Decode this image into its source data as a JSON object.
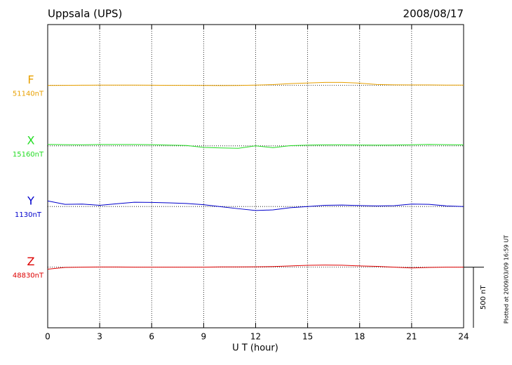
{
  "chart_data": {
    "type": "line",
    "title": "Uppsala (UPS)",
    "date": "2008/08/17",
    "x_label": "U T (hour)",
    "x": [
      0,
      1,
      2,
      3,
      4,
      5,
      6,
      7,
      8,
      9,
      10,
      11,
      12,
      13,
      14,
      15,
      16,
      17,
      18,
      19,
      20,
      21,
      22,
      23,
      24
    ],
    "xlim": [
      0,
      24
    ],
    "xticks": [
      0,
      3,
      6,
      9,
      12,
      15,
      18,
      21,
      24
    ],
    "grid": true,
    "scale_bar": {
      "value": 500,
      "label": "500 nT"
    },
    "footnote": "Plotted at 2009/03/09 16:59 UT",
    "series": [
      {
        "name": "F",
        "color": "#e8a000",
        "baseline": {
          "value": 51140,
          "label": "51140nT"
        },
        "values": [
          51138,
          51139,
          51140,
          51141,
          51141,
          51141,
          51140,
          51139,
          51139,
          51138,
          51137,
          51138,
          51141,
          51145,
          51153,
          51158,
          51163,
          51163,
          51157,
          51146,
          51143,
          51142,
          51142,
          51141,
          51141
        ]
      },
      {
        "name": "X",
        "color": "#22dd22",
        "baseline": {
          "value": 15160,
          "label": "15160nT"
        },
        "values": [
          15172,
          15170,
          15169,
          15171,
          15171,
          15171,
          15170,
          15166,
          15163,
          15147,
          15143,
          15140,
          15160,
          15145,
          15162,
          15166,
          15168,
          15169,
          15167,
          15166,
          15167,
          15169,
          15172,
          15170,
          15168
        ]
      },
      {
        "name": "Y",
        "color": "#0000cc",
        "baseline": {
          "value": 1130,
          "label": "1130nT"
        },
        "values": [
          1176,
          1148,
          1150,
          1140,
          1153,
          1165,
          1164,
          1160,
          1155,
          1145,
          1128,
          1112,
          1097,
          1102,
          1120,
          1130,
          1140,
          1142,
          1138,
          1135,
          1137,
          1150,
          1148,
          1135,
          1130
        ]
      },
      {
        "name": "Z",
        "color": "#dd0000",
        "baseline": {
          "value": 48830,
          "label": "48830nT"
        },
        "values": [
          48813,
          48828,
          48830,
          48831,
          48831,
          48830,
          48830,
          48830,
          48830,
          48830,
          48832,
          48832,
          48833,
          48835,
          48840,
          48845,
          48847,
          48846,
          48840,
          48836,
          48830,
          48823,
          48828,
          48830,
          48830
        ]
      }
    ]
  }
}
